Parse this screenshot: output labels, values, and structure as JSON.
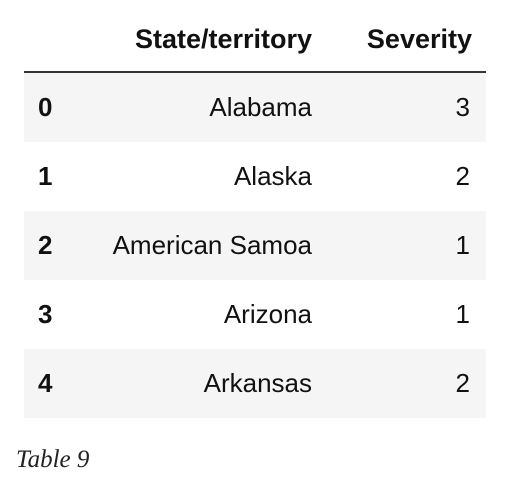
{
  "table": {
    "columns": [
      "",
      "State/territory",
      "Severity"
    ],
    "rows": [
      {
        "index": "0",
        "state": "Alabama",
        "severity": "3"
      },
      {
        "index": "1",
        "state": "Alaska",
        "severity": "2"
      },
      {
        "index": "2",
        "state": "American Samoa",
        "severity": "1"
      },
      {
        "index": "3",
        "state": "Arizona",
        "severity": "1"
      },
      {
        "index": "4",
        "state": "Arkansas",
        "severity": "2"
      }
    ]
  },
  "caption": "Table 9"
}
